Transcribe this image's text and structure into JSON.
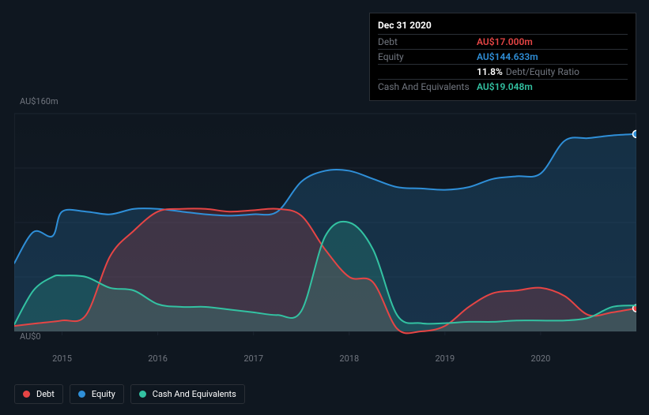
{
  "tooltip": {
    "date": "Dec 31 2020",
    "rows": [
      {
        "label": "Debt",
        "value": "AU$17.000m",
        "color": "#e64545"
      },
      {
        "label": "Equity",
        "value": "AU$144.633m",
        "color": "#2f8fd8"
      },
      {
        "label": "",
        "ratio_pct": "11.8%",
        "ratio_label": "Debt/Equity Ratio"
      },
      {
        "label": "Cash And Equivalents",
        "value": "AU$19.048m",
        "color": "#33c2a2"
      }
    ]
  },
  "chart": {
    "type": "area",
    "background_color": "#0f1720",
    "panel_gradient_top": "#0f1720",
    "panel_gradient_bottom": "#131c27",
    "gridline_color": "#1b2430",
    "border_color": "#232a33",
    "x_range": [
      2014.5,
      2021.0
    ],
    "y_range": [
      0,
      160
    ],
    "x_ticks": [
      2015,
      2016,
      2017,
      2018,
      2019,
      2020
    ],
    "y_ticks": [
      {
        "v": 0,
        "label": "AU$0"
      },
      {
        "v": 160,
        "label": "AU$160m"
      }
    ],
    "gridlines_y": [
      0,
      40,
      80,
      120,
      160
    ],
    "fill_opacity": 0.2,
    "line_width": 2,
    "marker_radius": 4.5,
    "series": [
      {
        "id": "equity",
        "label": "Equity",
        "color": "#2f8fd8",
        "points": [
          [
            2014.5,
            50
          ],
          [
            2014.7,
            73
          ],
          [
            2014.9,
            70
          ],
          [
            2015.0,
            88
          ],
          [
            2015.25,
            88
          ],
          [
            2015.5,
            86
          ],
          [
            2015.75,
            90
          ],
          [
            2016.0,
            90
          ],
          [
            2016.25,
            88
          ],
          [
            2016.5,
            86
          ],
          [
            2016.75,
            85
          ],
          [
            2017.0,
            86
          ],
          [
            2017.25,
            88
          ],
          [
            2017.5,
            110
          ],
          [
            2017.75,
            118
          ],
          [
            2018.0,
            118
          ],
          [
            2018.25,
            112
          ],
          [
            2018.5,
            106
          ],
          [
            2018.75,
            105
          ],
          [
            2019.0,
            104
          ],
          [
            2019.25,
            106
          ],
          [
            2019.5,
            112
          ],
          [
            2019.75,
            114
          ],
          [
            2020.0,
            116
          ],
          [
            2020.25,
            140
          ],
          [
            2020.5,
            142
          ],
          [
            2020.75,
            144
          ],
          [
            2021.0,
            145
          ]
        ],
        "marker_end": true
      },
      {
        "id": "debt",
        "label": "Debt",
        "color": "#e64545",
        "points": [
          [
            2014.5,
            4
          ],
          [
            2014.75,
            6
          ],
          [
            2015.0,
            8
          ],
          [
            2015.25,
            12
          ],
          [
            2015.5,
            55
          ],
          [
            2015.75,
            74
          ],
          [
            2016.0,
            88
          ],
          [
            2016.25,
            90
          ],
          [
            2016.5,
            90
          ],
          [
            2016.75,
            88
          ],
          [
            2017.0,
            89
          ],
          [
            2017.25,
            90
          ],
          [
            2017.5,
            85
          ],
          [
            2017.75,
            60
          ],
          [
            2018.0,
            40
          ],
          [
            2018.25,
            36
          ],
          [
            2018.5,
            2
          ],
          [
            2018.75,
            0
          ],
          [
            2019.0,
            4
          ],
          [
            2019.25,
            18
          ],
          [
            2019.5,
            28
          ],
          [
            2019.75,
            30
          ],
          [
            2020.0,
            32
          ],
          [
            2020.25,
            26
          ],
          [
            2020.5,
            12
          ],
          [
            2020.75,
            14
          ],
          [
            2021.0,
            17
          ]
        ],
        "marker_end": true
      },
      {
        "id": "cash",
        "label": "Cash And Equivalents",
        "color": "#33c2a2",
        "points": [
          [
            2014.5,
            5
          ],
          [
            2014.7,
            30
          ],
          [
            2014.9,
            40
          ],
          [
            2015.0,
            41
          ],
          [
            2015.25,
            40
          ],
          [
            2015.5,
            32
          ],
          [
            2015.75,
            30
          ],
          [
            2016.0,
            20
          ],
          [
            2016.25,
            18
          ],
          [
            2016.5,
            18
          ],
          [
            2016.75,
            16
          ],
          [
            2017.0,
            14
          ],
          [
            2017.25,
            12
          ],
          [
            2017.5,
            15
          ],
          [
            2017.75,
            70
          ],
          [
            2018.0,
            80
          ],
          [
            2018.25,
            60
          ],
          [
            2018.5,
            12
          ],
          [
            2018.75,
            6
          ],
          [
            2019.0,
            6
          ],
          [
            2019.25,
            7
          ],
          [
            2019.5,
            7
          ],
          [
            2019.75,
            8
          ],
          [
            2020.0,
            8
          ],
          [
            2020.25,
            8
          ],
          [
            2020.5,
            10
          ],
          [
            2020.75,
            18
          ],
          [
            2021.0,
            19
          ]
        ],
        "marker_end": false
      }
    ]
  },
  "legend": {
    "items": [
      {
        "id": "debt",
        "label": "Debt",
        "color": "#e64545"
      },
      {
        "id": "equity",
        "label": "Equity",
        "color": "#2f8fd8"
      },
      {
        "id": "cash",
        "label": "Cash And Equivalents",
        "color": "#33c2a2"
      }
    ]
  }
}
